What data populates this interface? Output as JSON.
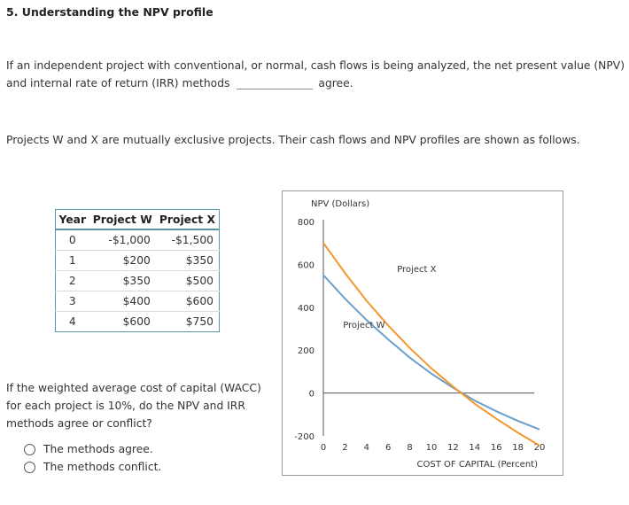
{
  "heading": "5. Understanding the NPV profile",
  "intro": {
    "line1": "If an independent project with conventional, or normal, cash flows is being analyzed, the net present value (NPV)",
    "line2_before": "and internal rate of return (IRR) methods",
    "line2_after": "agree."
  },
  "projects_text": "Projects W and X are mutually exclusive projects. Their cash flows and NPV profiles are shown as follows.",
  "cashflow_table": {
    "headers": [
      "Year",
      "Project W",
      "Project X"
    ],
    "rows": [
      [
        "0",
        "-$1,000",
        "-$1,500"
      ],
      [
        "1",
        "$200",
        "$350"
      ],
      [
        "2",
        "$350",
        "$500"
      ],
      [
        "3",
        "$400",
        "$600"
      ],
      [
        "4",
        "$600",
        "$750"
      ]
    ]
  },
  "question": {
    "line1": "If the weighted average cost of capital (WACC)",
    "line2": "for each project is 10%, do the NPV and IRR",
    "line3": "methods agree or conflict?"
  },
  "options": [
    "The methods agree.",
    "The methods conflict."
  ],
  "chart_data": {
    "type": "line",
    "ylabel": "NPV (Dollars)",
    "xlabel": "COST OF CAPITAL (Percent)",
    "xlim": [
      0,
      20
    ],
    "ylim": [
      -200,
      800
    ],
    "x_ticks": [
      0,
      2,
      4,
      6,
      8,
      10,
      12,
      14,
      16,
      18,
      20
    ],
    "y_ticks": [
      800,
      600,
      400,
      200,
      0,
      -200
    ],
    "x": [
      0,
      2,
      4,
      6,
      8,
      10,
      12,
      14,
      16,
      18,
      20
    ],
    "series": [
      {
        "name": "Project W",
        "color": "#6a9fcd",
        "values": [
          550,
          440,
          340,
          250,
          165,
          90,
          25,
          -35,
          -85,
          -130,
          -170
        ]
      },
      {
        "name": "Project X",
        "color": "#f5962e",
        "values": [
          700,
          560,
          430,
          315,
          210,
          115,
          30,
          -50,
          -120,
          -185,
          -245
        ]
      }
    ]
  }
}
